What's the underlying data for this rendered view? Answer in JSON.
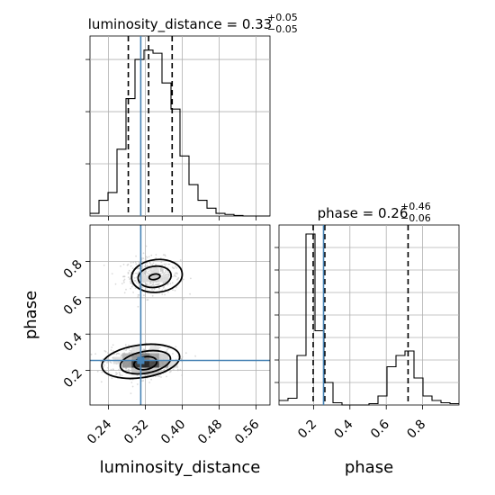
{
  "chart_data": {
    "type": "corner",
    "parameters": [
      "luminosity_distance",
      "phase"
    ],
    "axis_labels": {
      "x_left": "luminosity_distance",
      "x_right": "phase",
      "y_lower": "phase"
    },
    "titles": {
      "luminosity_distance": {
        "name": "luminosity_distance",
        "value": "0.33",
        "plus": "+0.05",
        "minus": "−0.05"
      },
      "phase": {
        "name": "phase",
        "value": "0.26",
        "plus": "+0.46",
        "minus": "−0.06"
      }
    },
    "injection": {
      "luminosity_distance": 0.31,
      "phase": 0.255,
      "color": "#4682b4"
    },
    "ranges": {
      "luminosity_distance": [
        0.2,
        0.59
      ],
      "phase": [
        0.01,
        1.0
      ]
    },
    "ticks": {
      "luminosity_distance": [
        "0.24",
        "0.32",
        "0.40",
        "0.48",
        "0.56"
      ],
      "phase": [
        "0.2",
        "0.4",
        "0.6",
        "0.8"
      ]
    },
    "quantiles": {
      "luminosity_distance": [
        0.283,
        0.327,
        0.378
      ],
      "phase": [
        0.198,
        0.262,
        0.72
      ]
    },
    "hist_luminosity_distance": {
      "edges": [
        0.2,
        0.2195,
        0.239,
        0.2585,
        0.278,
        0.2975,
        0.317,
        0.3365,
        0.356,
        0.3755,
        0.395,
        0.4145,
        0.434,
        0.4535,
        0.473,
        0.4925,
        0.512,
        0.5315,
        0.551,
        0.5705,
        0.59
      ],
      "counts": [
        5,
        30,
        45,
        128,
        225,
        300,
        318,
        312,
        255,
        205,
        115,
        60,
        30,
        15,
        5,
        3,
        1,
        0,
        0,
        0
      ],
      "ymax": 345,
      "ytick_counts": [
        100,
        200,
        300
      ]
    },
    "hist_phase": {
      "edges": [
        0.01,
        0.0595,
        0.109,
        0.1585,
        0.208,
        0.2575,
        0.307,
        0.3565,
        0.406,
        0.4555,
        0.505,
        0.5545,
        0.604,
        0.6535,
        0.703,
        0.7525,
        0.802,
        0.8515,
        0.901,
        0.9505,
        1.0
      ],
      "counts": [
        10,
        15,
        110,
        380,
        165,
        50,
        5,
        0,
        0,
        0,
        3,
        20,
        85,
        110,
        120,
        60,
        20,
        10,
        5,
        3
      ],
      "ymax": 400,
      "ytick_counts": [
        50,
        100,
        150,
        200,
        250,
        300,
        350
      ]
    },
    "contours": [
      {
        "center": [
          0.34,
          0.715
        ],
        "radii": [
          0.012,
          0.015
        ],
        "rotate": -10
      },
      {
        "center": [
          0.34,
          0.715
        ],
        "radii": [
          0.036,
          0.058
        ],
        "rotate": -8
      },
      {
        "center": [
          0.345,
          0.72
        ],
        "radii": [
          0.055,
          0.09
        ],
        "rotate": -6
      },
      {
        "center": [
          0.32,
          0.24
        ],
        "radii": [
          0.025,
          0.035
        ],
        "rotate": -10
      },
      {
        "center": [
          0.32,
          0.245
        ],
        "radii": [
          0.055,
          0.06
        ],
        "rotate": -10
      },
      {
        "center": [
          0.31,
          0.25
        ],
        "radii": [
          0.085,
          0.09
        ],
        "rotate": -8
      }
    ],
    "density_cells": [
      {
        "x": 0.3,
        "y": 0.235,
        "shade": 0.15
      },
      {
        "x": 0.32,
        "y": 0.235,
        "shade": 0.05
      },
      {
        "x": 0.34,
        "y": 0.235,
        "shade": 0.2
      },
      {
        "x": 0.3,
        "y": 0.275,
        "shade": 0.55
      },
      {
        "x": 0.32,
        "y": 0.275,
        "shade": 0.45
      },
      {
        "x": 0.34,
        "y": 0.275,
        "shade": 0.6
      },
      {
        "x": 0.28,
        "y": 0.235,
        "shade": 0.55
      },
      {
        "x": 0.36,
        "y": 0.235,
        "shade": 0.6
      },
      {
        "x": 0.28,
        "y": 0.275,
        "shade": 0.7
      },
      {
        "x": 0.3,
        "y": 0.195,
        "shade": 0.75
      },
      {
        "x": 0.32,
        "y": 0.195,
        "shade": 0.7
      },
      {
        "x": 0.34,
        "y": 0.195,
        "shade": 0.78
      },
      {
        "x": 0.36,
        "y": 0.275,
        "shade": 0.8
      },
      {
        "x": 0.26,
        "y": 0.255,
        "shade": 0.85
      },
      {
        "x": 0.38,
        "y": 0.235,
        "shade": 0.86
      },
      {
        "x": 0.3,
        "y": 0.315,
        "shade": 0.88
      },
      {
        "x": 0.34,
        "y": 0.315,
        "shade": 0.88
      },
      {
        "x": 0.32,
        "y": 0.705,
        "shade": 0.85
      },
      {
        "x": 0.34,
        "y": 0.705,
        "shade": 0.8
      },
      {
        "x": 0.36,
        "y": 0.705,
        "shade": 0.86
      },
      {
        "x": 0.34,
        "y": 0.745,
        "shade": 0.88
      }
    ],
    "scatter_clouds": [
      {
        "center": [
          0.335,
          0.72
        ],
        "spread": [
          0.06,
          0.1
        ],
        "n": 420
      },
      {
        "center": [
          0.31,
          0.245
        ],
        "spread": [
          0.075,
          0.085
        ],
        "n": 620
      }
    ],
    "grid": true
  }
}
